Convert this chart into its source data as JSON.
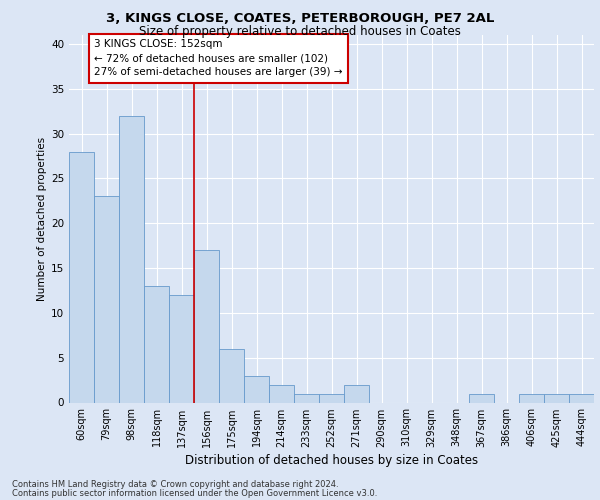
{
  "title1": "3, KINGS CLOSE, COATES, PETERBOROUGH, PE7 2AL",
  "title2": "Size of property relative to detached houses in Coates",
  "xlabel": "Distribution of detached houses by size in Coates",
  "ylabel": "Number of detached properties",
  "categories": [
    "60sqm",
    "79sqm",
    "98sqm",
    "118sqm",
    "137sqm",
    "156sqm",
    "175sqm",
    "194sqm",
    "214sqm",
    "233sqm",
    "252sqm",
    "271sqm",
    "290sqm",
    "310sqm",
    "329sqm",
    "348sqm",
    "367sqm",
    "386sqm",
    "406sqm",
    "425sqm",
    "444sqm"
  ],
  "values": [
    28,
    23,
    32,
    13,
    12,
    17,
    6,
    3,
    2,
    1,
    1,
    2,
    0,
    0,
    0,
    0,
    1,
    0,
    1,
    1,
    1
  ],
  "bar_color": "#c5d8ed",
  "bar_edge_color": "#6699cc",
  "reference_line_x": 4.5,
  "annotation_line1": "3 KINGS CLOSE: 152sqm",
  "annotation_line2": "← 72% of detached houses are smaller (102)",
  "annotation_line3": "27% of semi-detached houses are larger (39) →",
  "annotation_box_color": "#cc0000",
  "ylim": [
    0,
    41
  ],
  "yticks": [
    0,
    5,
    10,
    15,
    20,
    25,
    30,
    35,
    40
  ],
  "footnote1": "Contains HM Land Registry data © Crown copyright and database right 2024.",
  "footnote2": "Contains public sector information licensed under the Open Government Licence v3.0.",
  "bg_color": "#dce6f5",
  "plot_bg_color": "#dce6f5",
  "grid_color": "#ffffff",
  "title1_fontsize": 9.5,
  "title2_fontsize": 8.5,
  "ylabel_fontsize": 7.5,
  "xlabel_fontsize": 8.5,
  "tick_fontsize": 7.0,
  "annot_fontsize": 7.5,
  "footnote_fontsize": 6.0
}
